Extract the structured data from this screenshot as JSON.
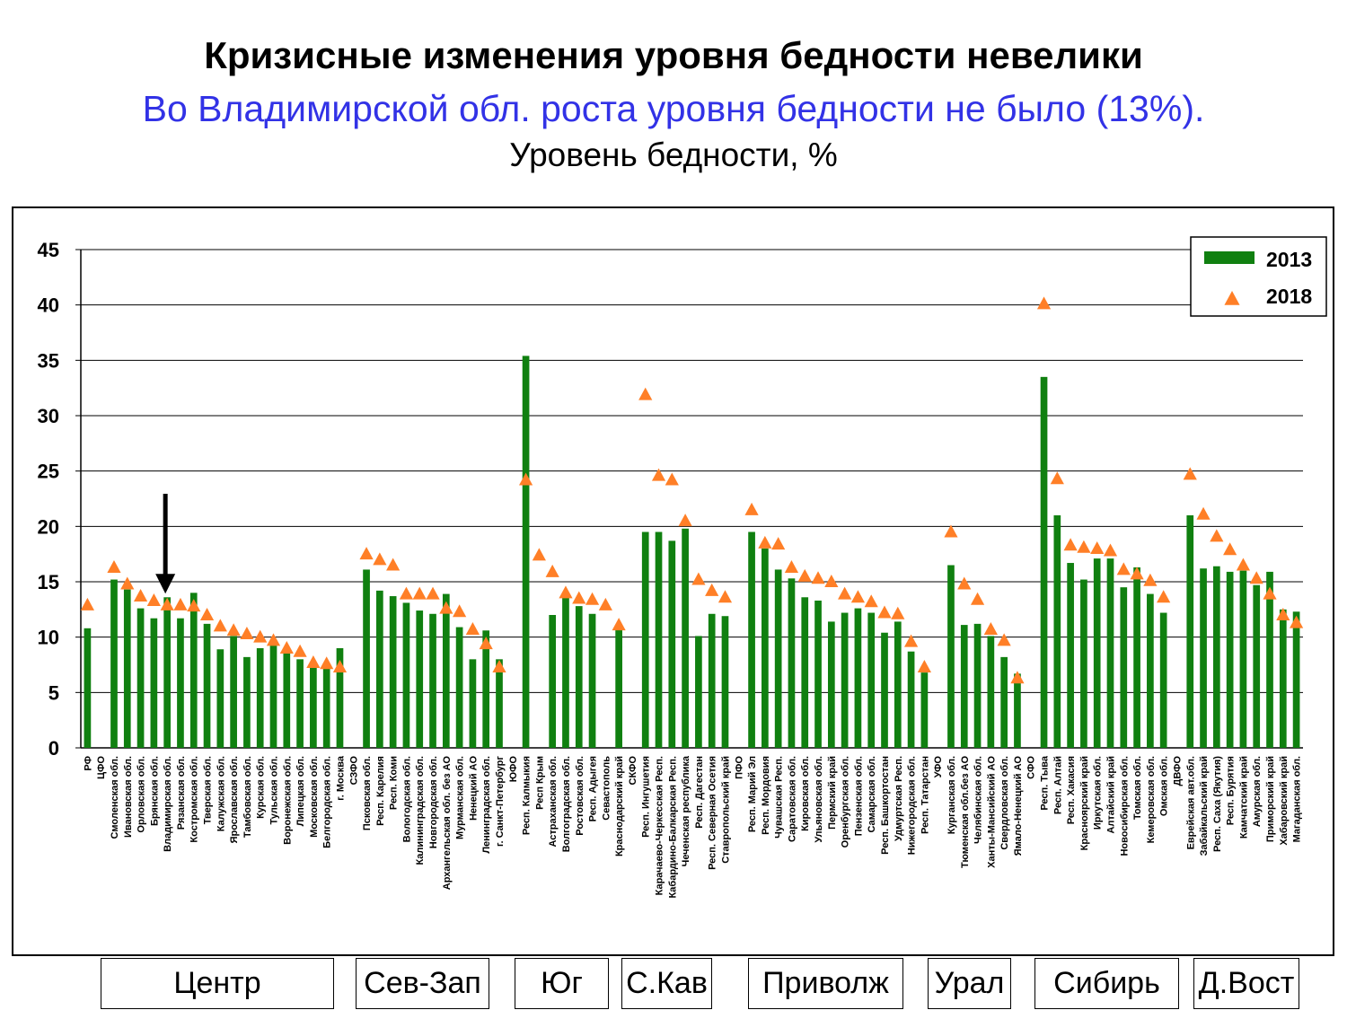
{
  "header": {
    "title": "Кризисные изменения уровня бедности невелики",
    "subtitle": "Во Владимирской обл. роста уровня бедности не было (13%).",
    "chart_caption": "Уровень бедности, %"
  },
  "region_labels": [
    "Центр",
    "Сев-Зап",
    "Юг",
    "С.Кав",
    "Приволж",
    "Урал",
    "Сибирь",
    "Д.Вост"
  ],
  "colors": {
    "bar_2013": "#108010",
    "marker_2018": "#ff7f27",
    "arrow": "#000000",
    "grid": "#000000"
  },
  "chart_data": {
    "type": "bar",
    "title": "Уровень бедности, %",
    "ylim": [
      0,
      45
    ],
    "yticks": [
      0,
      5,
      10,
      15,
      20,
      25,
      30,
      35,
      40,
      45
    ],
    "grid": true,
    "legend_position": "top-right",
    "series": [
      {
        "name": "2013",
        "kind": "bar"
      },
      {
        "name": "2018",
        "kind": "triangle-marker"
      }
    ],
    "annotation": {
      "type": "arrow",
      "target": "Владимирская обл."
    },
    "points": [
      {
        "label": "РФ",
        "v2013": 10.8,
        "v2018": 12.9
      },
      {
        "label": "ЦФО",
        "v2013": null,
        "v2018": null
      },
      {
        "label": "Смоленская обл.",
        "v2013": 15.2,
        "v2018": 16.3
      },
      {
        "label": "Ивановская обл.",
        "v2013": 14.3,
        "v2018": 14.8
      },
      {
        "label": "Орловская обл.",
        "v2013": 12.6,
        "v2018": 13.7
      },
      {
        "label": "Брянская обл.",
        "v2013": 11.7,
        "v2018": 13.3
      },
      {
        "label": "Владимирская обл.",
        "v2013": 13.6,
        "v2018": 12.9
      },
      {
        "label": "Рязанская обл.",
        "v2013": 11.7,
        "v2018": 12.9
      },
      {
        "label": "Костромская обл.",
        "v2013": 14.0,
        "v2018": 12.8
      },
      {
        "label": "Тверская обл.",
        "v2013": 11.2,
        "v2018": 12.0
      },
      {
        "label": "Калужская обл.",
        "v2013": 8.9,
        "v2018": 11.0
      },
      {
        "label": "Ярославская обл.",
        "v2013": 10.1,
        "v2018": 10.6
      },
      {
        "label": "Тамбовская обл.",
        "v2013": 8.2,
        "v2018": 10.3
      },
      {
        "label": "Курская обл.",
        "v2013": 9.0,
        "v2018": 10.0
      },
      {
        "label": "Тульская обл.",
        "v2013": 9.3,
        "v2018": 9.7
      },
      {
        "label": "Воронежская обл.",
        "v2013": 8.7,
        "v2018": 9.0
      },
      {
        "label": "Липецкая обл.",
        "v2013": 8.0,
        "v2018": 8.7
      },
      {
        "label": "Московская обл.",
        "v2013": 7.4,
        "v2018": 7.7
      },
      {
        "label": "Белгородская обл.",
        "v2013": 7.3,
        "v2018": 7.6
      },
      {
        "label": "г. Москва",
        "v2013": 9.0,
        "v2018": 7.3
      },
      {
        "label": "СЗФО",
        "v2013": null,
        "v2018": null
      },
      {
        "label": "Псковская обл.",
        "v2013": 16.1,
        "v2018": 17.5
      },
      {
        "label": "Респ. Карелия",
        "v2013": 14.2,
        "v2018": 17.0
      },
      {
        "label": "Респ. Коми",
        "v2013": 13.7,
        "v2018": 16.5
      },
      {
        "label": "Вологодская обл.",
        "v2013": 13.1,
        "v2018": 13.9
      },
      {
        "label": "Калининградская обл.",
        "v2013": 12.4,
        "v2018": 13.9
      },
      {
        "label": "Новгородская обл.",
        "v2013": 12.1,
        "v2018": 13.9
      },
      {
        "label": "Архангельская обл. без АО",
        "v2013": 13.9,
        "v2018": 12.6
      },
      {
        "label": "Мурманская обл.",
        "v2013": 10.9,
        "v2018": 12.3
      },
      {
        "label": "Ненецкий АО",
        "v2013": 8.0,
        "v2018": 10.7
      },
      {
        "label": "Ленинградская обл.",
        "v2013": 10.6,
        "v2018": 9.4
      },
      {
        "label": "г. Санкт-Петербург",
        "v2013": 8.0,
        "v2018": 7.3
      },
      {
        "label": "ЮФО",
        "v2013": null,
        "v2018": null
      },
      {
        "label": "Респ. Калмыкия",
        "v2013": 35.4,
        "v2018": 24.2
      },
      {
        "label": "Респ Крым",
        "v2013": null,
        "v2018": 17.4
      },
      {
        "label": "Астраханская обл.",
        "v2013": 12.0,
        "v2018": 15.9
      },
      {
        "label": "Волгоградская обл.",
        "v2013": 13.6,
        "v2018": 14.0
      },
      {
        "label": "Ростовская обл.",
        "v2013": 12.8,
        "v2018": 13.5
      },
      {
        "label": "Респ. Адыгея",
        "v2013": 12.1,
        "v2018": 13.4
      },
      {
        "label": "Севастополь",
        "v2013": null,
        "v2018": 12.9
      },
      {
        "label": "Краснодарский край",
        "v2013": 10.8,
        "v2018": 11.1
      },
      {
        "label": "СКФО",
        "v2013": null,
        "v2018": null
      },
      {
        "label": "Респ. Ингушетия",
        "v2013": 19.5,
        "v2018": 31.9
      },
      {
        "label": "Карачаево-Черкесская Респ.",
        "v2013": 19.5,
        "v2018": 24.6
      },
      {
        "label": "Кабардино-Балкарская Респ.",
        "v2013": 18.7,
        "v2018": 24.2
      },
      {
        "label": "Чеченская республика",
        "v2013": 19.8,
        "v2018": 20.5
      },
      {
        "label": "Респ. Дагестан",
        "v2013": 10.1,
        "v2018": 15.2
      },
      {
        "label": "Респ. Северная Осетия",
        "v2013": 12.1,
        "v2018": 14.2
      },
      {
        "label": "Ставропольский край",
        "v2013": 11.9,
        "v2018": 13.6
      },
      {
        "label": "ПФО",
        "v2013": null,
        "v2018": null
      },
      {
        "label": "Респ. Марий Эл",
        "v2013": 19.5,
        "v2018": 21.5
      },
      {
        "label": "Респ. Мордовия",
        "v2013": 18.0,
        "v2018": 18.5
      },
      {
        "label": "Чувашская Респ.",
        "v2013": 16.1,
        "v2018": 18.4
      },
      {
        "label": "Саратовская обл.",
        "v2013": 15.3,
        "v2018": 16.3
      },
      {
        "label": "Кировская обл.",
        "v2013": 13.6,
        "v2018": 15.5
      },
      {
        "label": "Ульяновская обл.",
        "v2013": 13.3,
        "v2018": 15.3
      },
      {
        "label": "Пермский край",
        "v2013": 11.4,
        "v2018": 15.0
      },
      {
        "label": "Оренбургская обл.",
        "v2013": 12.2,
        "v2018": 13.9
      },
      {
        "label": "Пензенская обл.",
        "v2013": 12.6,
        "v2018": 13.6
      },
      {
        "label": "Самарская обл.",
        "v2013": 12.2,
        "v2018": 13.2
      },
      {
        "label": "Респ. Башкортостан",
        "v2013": 10.4,
        "v2018": 12.2
      },
      {
        "label": "Удмуртская Респ.",
        "v2013": 11.4,
        "v2018": 12.1
      },
      {
        "label": "Нижегородская обл.",
        "v2013": 8.7,
        "v2018": 9.6
      },
      {
        "label": "Респ. Татарстан",
        "v2013": 6.8,
        "v2018": 7.3
      },
      {
        "label": "УФО",
        "v2013": null,
        "v2018": null
      },
      {
        "label": "Курганская обл.",
        "v2013": 16.5,
        "v2018": 19.5
      },
      {
        "label": "Тюменская обл.без АО",
        "v2013": 11.1,
        "v2018": 14.8
      },
      {
        "label": "Челябинская обл.",
        "v2013": 11.2,
        "v2018": 13.4
      },
      {
        "label": "Ханты-Мансийский АО",
        "v2013": 10.1,
        "v2018": 10.7
      },
      {
        "label": "Свердловская обл.",
        "v2013": 8.2,
        "v2018": 9.7
      },
      {
        "label": "Ямало-Ненецкий АО",
        "v2013": 6.7,
        "v2018": 6.3
      },
      {
        "label": "СФО",
        "v2013": null,
        "v2018": null
      },
      {
        "label": "Респ. Тыва",
        "v2013": 33.5,
        "v2018": 40.1
      },
      {
        "label": "Респ. Алтай",
        "v2013": 21.0,
        "v2018": 24.3
      },
      {
        "label": "Респ. Хакасия",
        "v2013": 16.7,
        "v2018": 18.3
      },
      {
        "label": "Красноярский край",
        "v2013": 15.2,
        "v2018": 18.1
      },
      {
        "label": "Иркутская обл.",
        "v2013": 17.1,
        "v2018": 18.0
      },
      {
        "label": "Алтайский край",
        "v2013": 17.1,
        "v2018": 17.8
      },
      {
        "label": "Новосибирская обл.",
        "v2013": 14.5,
        "v2018": 16.1
      },
      {
        "label": "Томская обл.",
        "v2013": 16.3,
        "v2018": 15.7
      },
      {
        "label": "Кемеровская обл.",
        "v2013": 13.9,
        "v2018": 15.1
      },
      {
        "label": "Омская обл.",
        "v2013": 12.2,
        "v2018": 13.6
      },
      {
        "label": "ДВФО",
        "v2013": null,
        "v2018": null
      },
      {
        "label": "Еврейская авт.обл.",
        "v2013": 21.0,
        "v2018": 24.7
      },
      {
        "label": "Забайкальский край",
        "v2013": 16.2,
        "v2018": 21.1
      },
      {
        "label": "Респ. Саха (Якутия)",
        "v2013": 16.4,
        "v2018": 19.1
      },
      {
        "label": "Респ. Бурятия",
        "v2013": 15.9,
        "v2018": 17.9
      },
      {
        "label": "Камчатский край",
        "v2013": 16.0,
        "v2018": 16.5
      },
      {
        "label": "Амурская обл.",
        "v2013": 14.7,
        "v2018": 15.3
      },
      {
        "label": "Приморский край",
        "v2013": 15.9,
        "v2018": 13.9
      },
      {
        "label": "Хабаровский край",
        "v2013": 12.5,
        "v2018": 12.0
      },
      {
        "label": "Магаданская обл.",
        "v2013": 12.3,
        "v2018": 11.3
      }
    ]
  }
}
